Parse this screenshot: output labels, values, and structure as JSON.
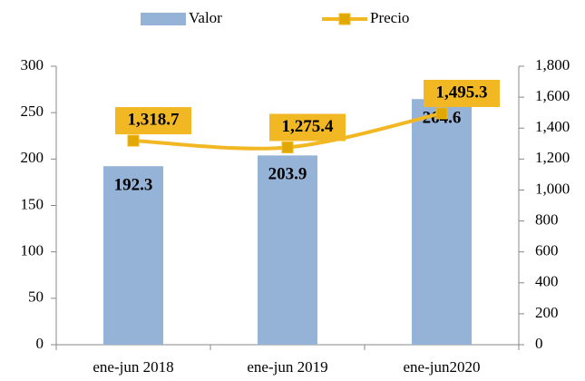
{
  "chart_data": {
    "type": "bar",
    "categories": [
      "ene-jun 2018",
      "ene-jun 2019",
      "ene-jun2020"
    ],
    "series": [
      {
        "name": "Valor",
        "type": "bar",
        "color": "#95b3d7",
        "values": [
          192.3,
          203.9,
          264.6
        ]
      },
      {
        "name": "Precio",
        "type": "line",
        "axis": "y2",
        "color": "#f2b824",
        "marker_color": "#e0a800",
        "values": [
          1318.7,
          1275.4,
          1495.3
        ],
        "value_labels": [
          "1,318.7",
          "1,275.4",
          "1,495.3"
        ]
      }
    ],
    "ylim": [
      0,
      300
    ],
    "yticks": [
      0,
      50,
      100,
      150,
      200,
      250,
      300
    ],
    "y2lim": [
      0,
      1800
    ],
    "y2ticks": [
      0,
      200,
      400,
      600,
      800,
      {
        "value": 1000,
        "label": "1,000"
      },
      {
        "value": 1200,
        "label": "1,200"
      },
      {
        "value": 1400,
        "label": "1,400"
      },
      {
        "value": 1600,
        "label": "1,600"
      },
      {
        "value": 1800,
        "label": "1,800"
      }
    ],
    "legend": "top"
  }
}
